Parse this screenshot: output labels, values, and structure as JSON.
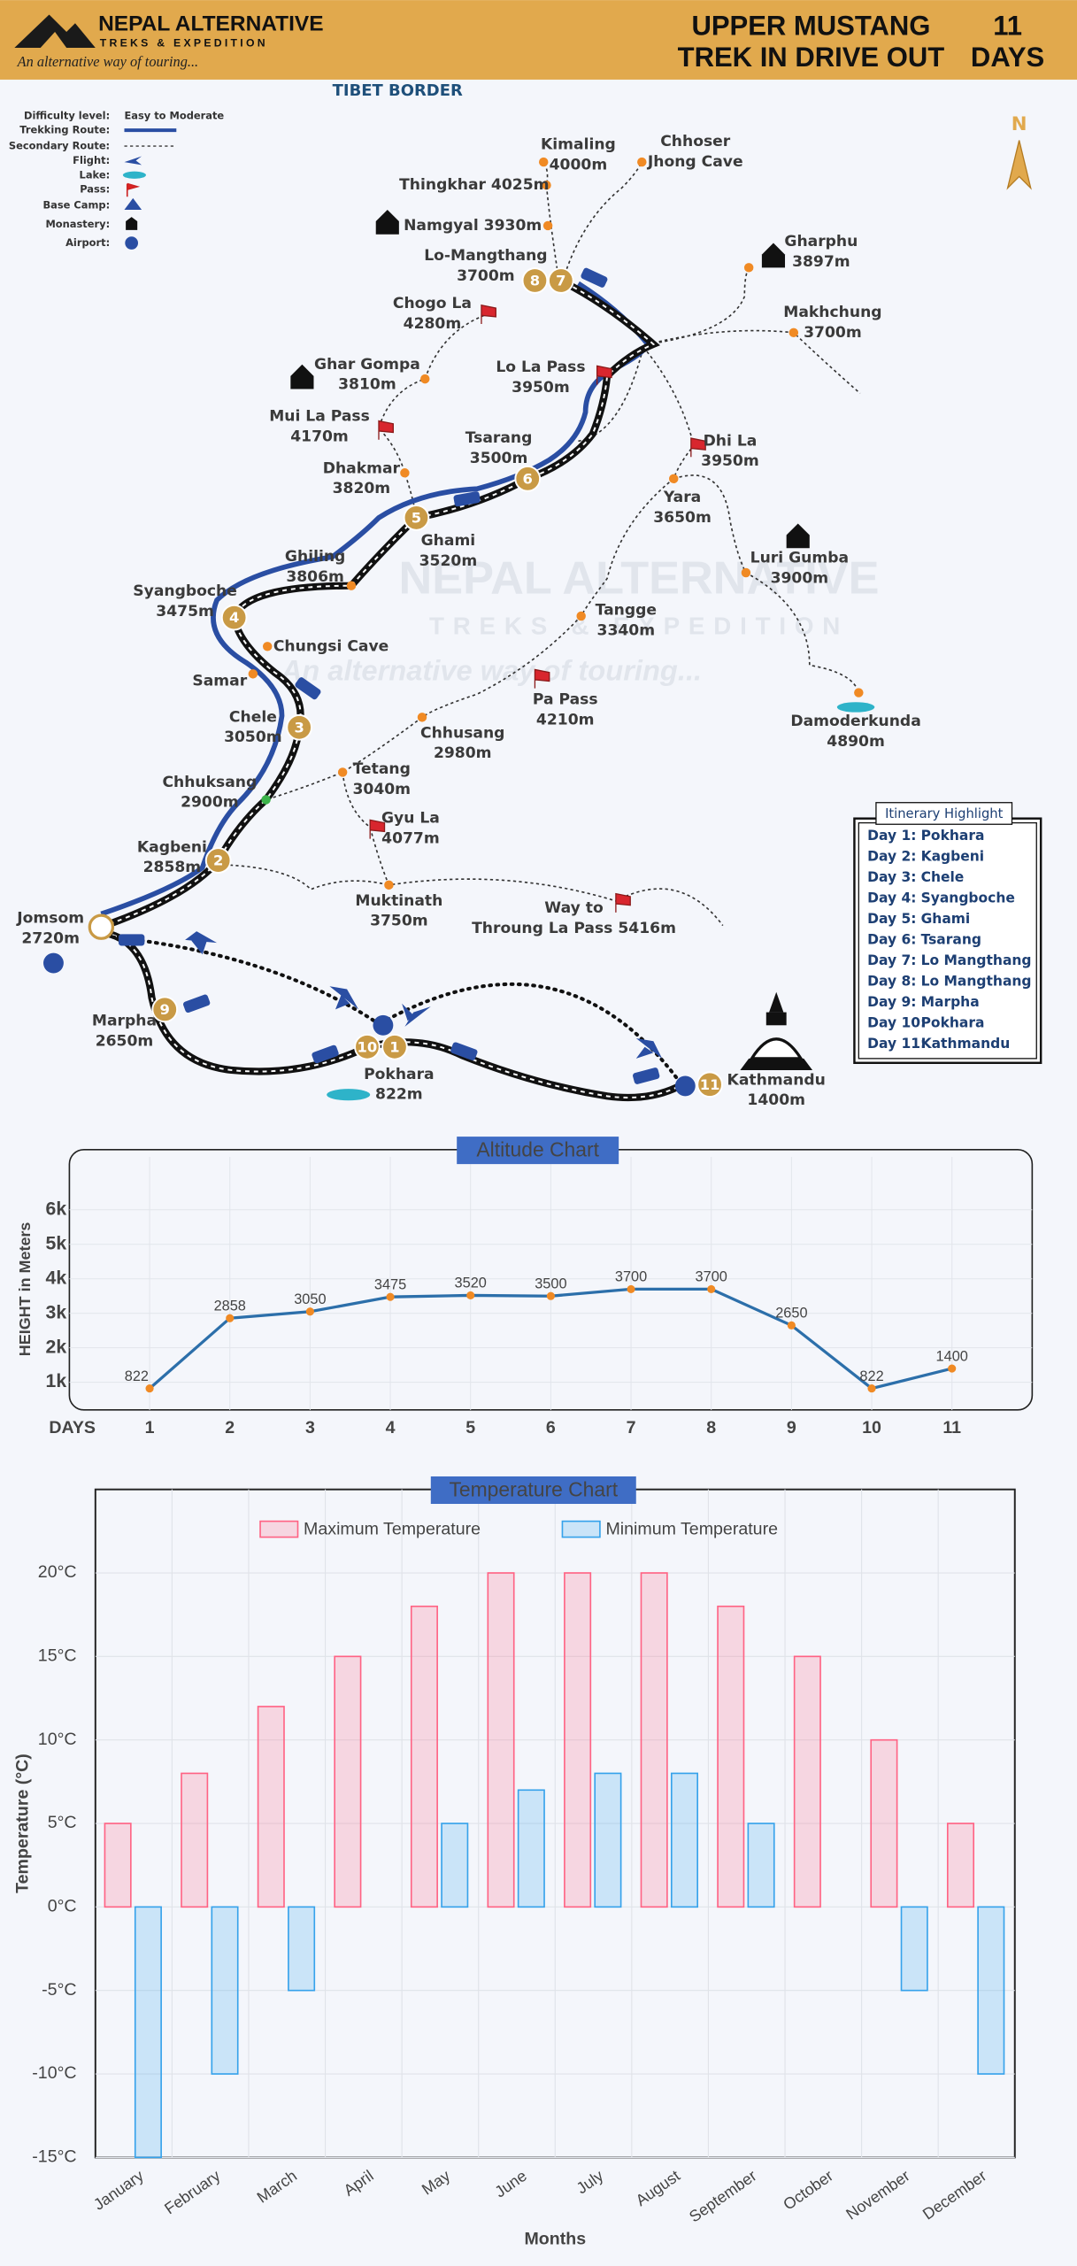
{
  "header": {
    "brand": "NEPAL ALTERNATIVE",
    "brand_sub": "TREKS & EXPEDITION",
    "tagline": "An alternative way of touring...",
    "title": [
      "UPPER MUSTANG",
      "TREK IN DRIVE OUT"
    ],
    "duration": [
      "11",
      "DAYS"
    ]
  },
  "map": {
    "border_label": "TIBET BORDER",
    "north": "N",
    "legend": [
      {
        "label": "Difficulty level:",
        "value": "Easy to Moderate"
      },
      {
        "label": "Trekking Route:"
      },
      {
        "label": "Secondary Route:"
      },
      {
        "label": "Flight:"
      },
      {
        "label": "Lake:"
      },
      {
        "label": "Pass:"
      },
      {
        "label": "Base Camp:"
      },
      {
        "label": "Monastery:"
      },
      {
        "label": "Airport:"
      }
    ],
    "places": [
      [
        "Kimaling",
        "4000m"
      ],
      [
        "Chhoser",
        "Jhong Cave"
      ],
      [
        "Thingkhar 4025m"
      ],
      [
        "Namgyal 3930m"
      ],
      [
        "Lo-Mangthang",
        "3700m"
      ],
      [
        "Gharphu",
        "3897m"
      ],
      [
        "Chogo La",
        "4280m"
      ],
      [
        "Makhchung",
        "3700m"
      ],
      [
        "Ghar Gompa",
        "3810m"
      ],
      [
        "Lo La Pass",
        "3950m"
      ],
      [
        "Mui La Pass",
        "4170m"
      ],
      [
        "Tsarang",
        "3500m"
      ],
      [
        "Dhi La",
        "3950m"
      ],
      [
        "Dhakmar",
        "3820m"
      ],
      [
        "Yara",
        "3650m"
      ],
      [
        "Ghami",
        "3520m"
      ],
      [
        "Ghiling",
        "3806m"
      ],
      [
        "Luri Gumba",
        "3900m"
      ],
      [
        "Syangboche",
        "3475m"
      ],
      [
        "Tangge",
        "3340m"
      ],
      [
        "Chungsi Cave"
      ],
      [
        "Samar"
      ],
      [
        "Pa Pass",
        "4210m"
      ],
      [
        "Chele",
        "3050m"
      ],
      [
        "Damoderkunda",
        "4890m"
      ],
      [
        "Chhusang",
        "2980m"
      ],
      [
        "Chhuksang",
        "2900m"
      ],
      [
        "Tetang",
        "3040m"
      ],
      [
        "Gyu La",
        "4077m"
      ],
      [
        "Kagbeni",
        "2858m"
      ],
      [
        "Muktinath",
        "3750m"
      ],
      [
        "Way to",
        "Throung La Pass 5416m"
      ],
      [
        "Jomsom",
        "2720m"
      ],
      [
        "Marpha",
        "2650m"
      ],
      [
        "Pokhara",
        "822m"
      ],
      [
        "Kathmandu",
        "1400m"
      ]
    ],
    "day_markers": [
      8,
      7,
      6,
      5,
      4,
      3,
      2,
      9,
      10,
      1,
      11
    ]
  },
  "itinerary": {
    "title": "Itinerary Highlight",
    "days": [
      [
        "Day 1:",
        "Pokhara"
      ],
      [
        "Day 2:",
        "Kagbeni"
      ],
      [
        "Day 3:",
        "Chele"
      ],
      [
        "Day 4:",
        "Syangboche"
      ],
      [
        "Day 5:",
        "Ghami"
      ],
      [
        "Day 6:",
        "Tsarang"
      ],
      [
        "Day 7:",
        "Lo Mangthang"
      ],
      [
        "Day 8:",
        "Lo Mangthang"
      ],
      [
        "Day 9:",
        "Marpha"
      ],
      [
        "Day 10:",
        "Pokhara"
      ],
      [
        "Day 11:",
        "Kathmandu"
      ]
    ]
  },
  "chart_data": [
    {
      "type": "line",
      "title": "Altitude Chart",
      "y_label": "HEIGHT in Meters",
      "x_label": "DAYS",
      "x": [
        1,
        2,
        3,
        4,
        5,
        6,
        7,
        8,
        9,
        10,
        11
      ],
      "values": [
        822,
        2858,
        3050,
        3475,
        3520,
        3500,
        3700,
        3700,
        2650,
        822,
        1400
      ],
      "color": "#2c6faa",
      "point_color": "#f08a24",
      "xlim": [
        0,
        12
      ],
      "xticks": [
        1,
        2,
        3,
        4,
        5,
        6,
        7,
        8,
        9,
        10,
        11
      ],
      "ylim": [
        200,
        7200
      ],
      "yticks": [
        {
          "value": 1000,
          "label": "1k"
        },
        {
          "value": 2000,
          "label": "2k"
        },
        {
          "value": 3000,
          "label": "3k"
        },
        {
          "value": 4000,
          "label": "4k"
        },
        {
          "value": 5000,
          "label": "5k"
        },
        {
          "value": 6000,
          "label": "6k"
        }
      ],
      "grid": true
    },
    {
      "type": "bar",
      "title": "Temperature Chart",
      "y_label": "Temperature (°C)",
      "x_label": "Months",
      "categories": [
        "January",
        "February",
        "March",
        "April",
        "May",
        "June",
        "July",
        "August",
        "September",
        "October",
        "November",
        "December"
      ],
      "series": [
        {
          "name": "Maximum Temperature",
          "color": "#ff6384",
          "values": [
            5,
            8,
            12,
            15,
            18,
            20,
            20,
            20,
            18,
            15,
            10,
            5
          ]
        },
        {
          "name": "Minimum Temperature",
          "color": "#36a2eb",
          "values": [
            -15,
            -10,
            -5,
            0,
            5,
            7,
            8,
            8,
            5,
            0,
            -5,
            -10
          ]
        }
      ],
      "ylim": [
        -15,
        25
      ],
      "yticks": [
        {
          "value": -15,
          "label": "-15°C"
        },
        {
          "value": -10,
          "label": "-10°C"
        },
        {
          "value": -5,
          "label": "-5°C"
        },
        {
          "value": 0,
          "label": "0°C"
        },
        {
          "value": 5,
          "label": "5°C"
        },
        {
          "value": 10,
          "label": "10°C"
        },
        {
          "value": 15,
          "label": "15°C"
        },
        {
          "value": 20,
          "label": "20°C"
        }
      ],
      "grid": true,
      "legend": "top"
    }
  ]
}
